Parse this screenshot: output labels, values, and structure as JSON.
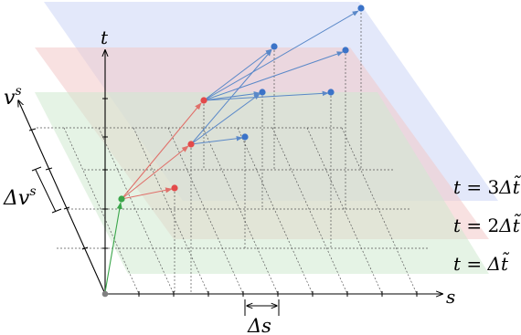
{
  "axes": {
    "t": "t",
    "s": "s",
    "v_base": "v",
    "v_sup": "s"
  },
  "intervals": {
    "delta_v_base": "Δv",
    "delta_v_sup": "s",
    "delta_s": "Δs"
  },
  "planes": [
    {
      "id": "plane-1",
      "label_prefix": "t = ",
      "label_coef": "",
      "label_var": "Δt̃",
      "color": "#cfe9cf"
    },
    {
      "id": "plane-2",
      "label_prefix": "t = ",
      "label_coef": "2",
      "label_var": "Δt̃",
      "color": "#f3c9c9"
    },
    {
      "id": "plane-3",
      "label_prefix": "t = ",
      "label_coef": "3",
      "label_var": "Δt̃",
      "color": "#ccd6f6"
    }
  ],
  "colors": {
    "origin": "#808080",
    "green": "#3aa64a",
    "red": "#e34a4a",
    "blue": "#3b73c8",
    "arrow_green": "#3aa64a",
    "arrow_red": "#e0706a",
    "arrow_blue": "#5a88c8"
  }
}
